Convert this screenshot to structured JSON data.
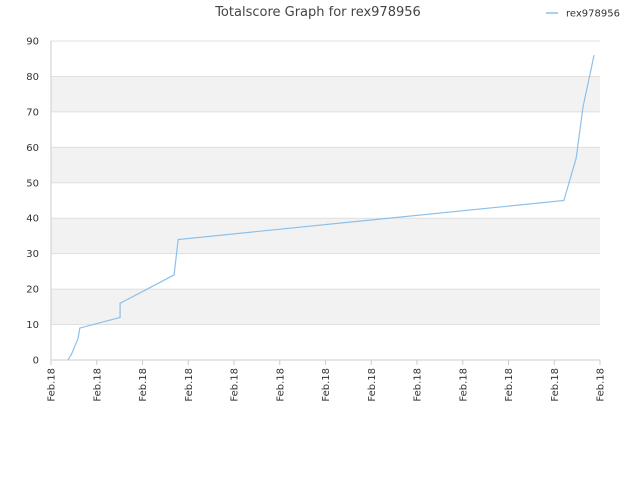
{
  "chart_data": {
    "type": "line",
    "title": "Totalscore Graph for rex978956",
    "x": [
      0.37,
      0.44,
      0.46,
      0.59,
      0.63,
      1.51,
      1.51,
      2.69,
      2.78,
      11.21,
      11.48,
      11.63,
      11.87
    ],
    "series": [
      {
        "name": "rex978956",
        "color": "#8cc0ea",
        "values": [
          0,
          1.5,
          2,
          6,
          9,
          12,
          16,
          24,
          34,
          45,
          57,
          71.5,
          86
        ]
      }
    ],
    "xlim": [
      0,
      12
    ],
    "xticks": [
      {
        "value": 0,
        "label": "Feb.18"
      },
      {
        "value": 1,
        "label": "Feb.18"
      },
      {
        "value": 2,
        "label": "Feb.18"
      },
      {
        "value": 3,
        "label": "Feb.18"
      },
      {
        "value": 4,
        "label": "Feb.18"
      },
      {
        "value": 5,
        "label": "Feb.18"
      },
      {
        "value": 6,
        "label": "Feb.18"
      },
      {
        "value": 7,
        "label": "Feb.18"
      },
      {
        "value": 8,
        "label": "Feb.18"
      },
      {
        "value": 9,
        "label": "Feb.18"
      },
      {
        "value": 10,
        "label": "Feb.18"
      },
      {
        "value": 11,
        "label": "Feb.18"
      },
      {
        "value": 12,
        "label": "Feb.18"
      }
    ],
    "ylim": [
      0,
      90
    ],
    "yticks": [
      0,
      10,
      20,
      30,
      40,
      50,
      60,
      70,
      80,
      90
    ],
    "grid": true,
    "legend": "top-right"
  }
}
